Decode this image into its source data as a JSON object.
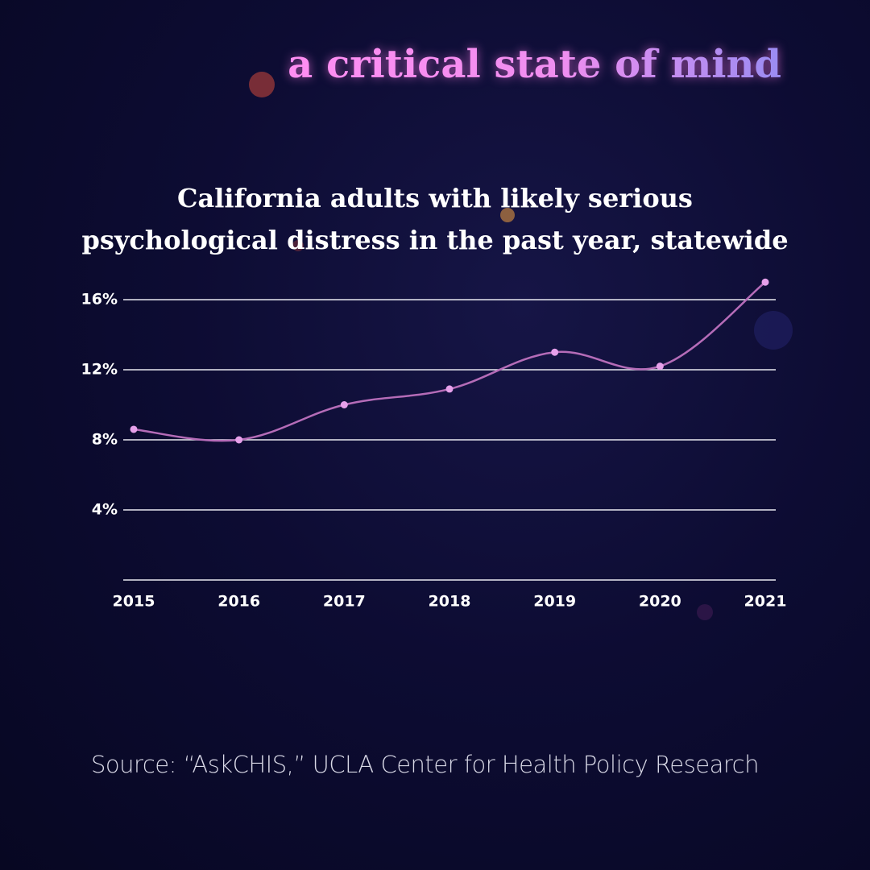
{
  "brand": "a critical state of mind",
  "chart_data": {
    "type": "line",
    "title": "California adults with likely serious psychological distress in the past year, statewide",
    "categories": [
      "2015",
      "2016",
      "2017",
      "2018",
      "2019",
      "2020",
      "2021"
    ],
    "series": [
      {
        "name": "California adults",
        "color": "#b56cb8",
        "values": [
          8.6,
          8.0,
          10.0,
          10.9,
          13.0,
          12.2,
          17.0
        ]
      }
    ],
    "ylim": [
      0,
      17
    ],
    "yticks": [
      {
        "value": 4,
        "label": "4%"
      },
      {
        "value": 8,
        "label": "8%"
      },
      {
        "value": 12,
        "label": "12%"
      },
      {
        "value": 16,
        "label": "16%"
      }
    ],
    "grid": true
  },
  "source": "Source: “AskCHIS,” UCLA Center for Health Policy Research"
}
